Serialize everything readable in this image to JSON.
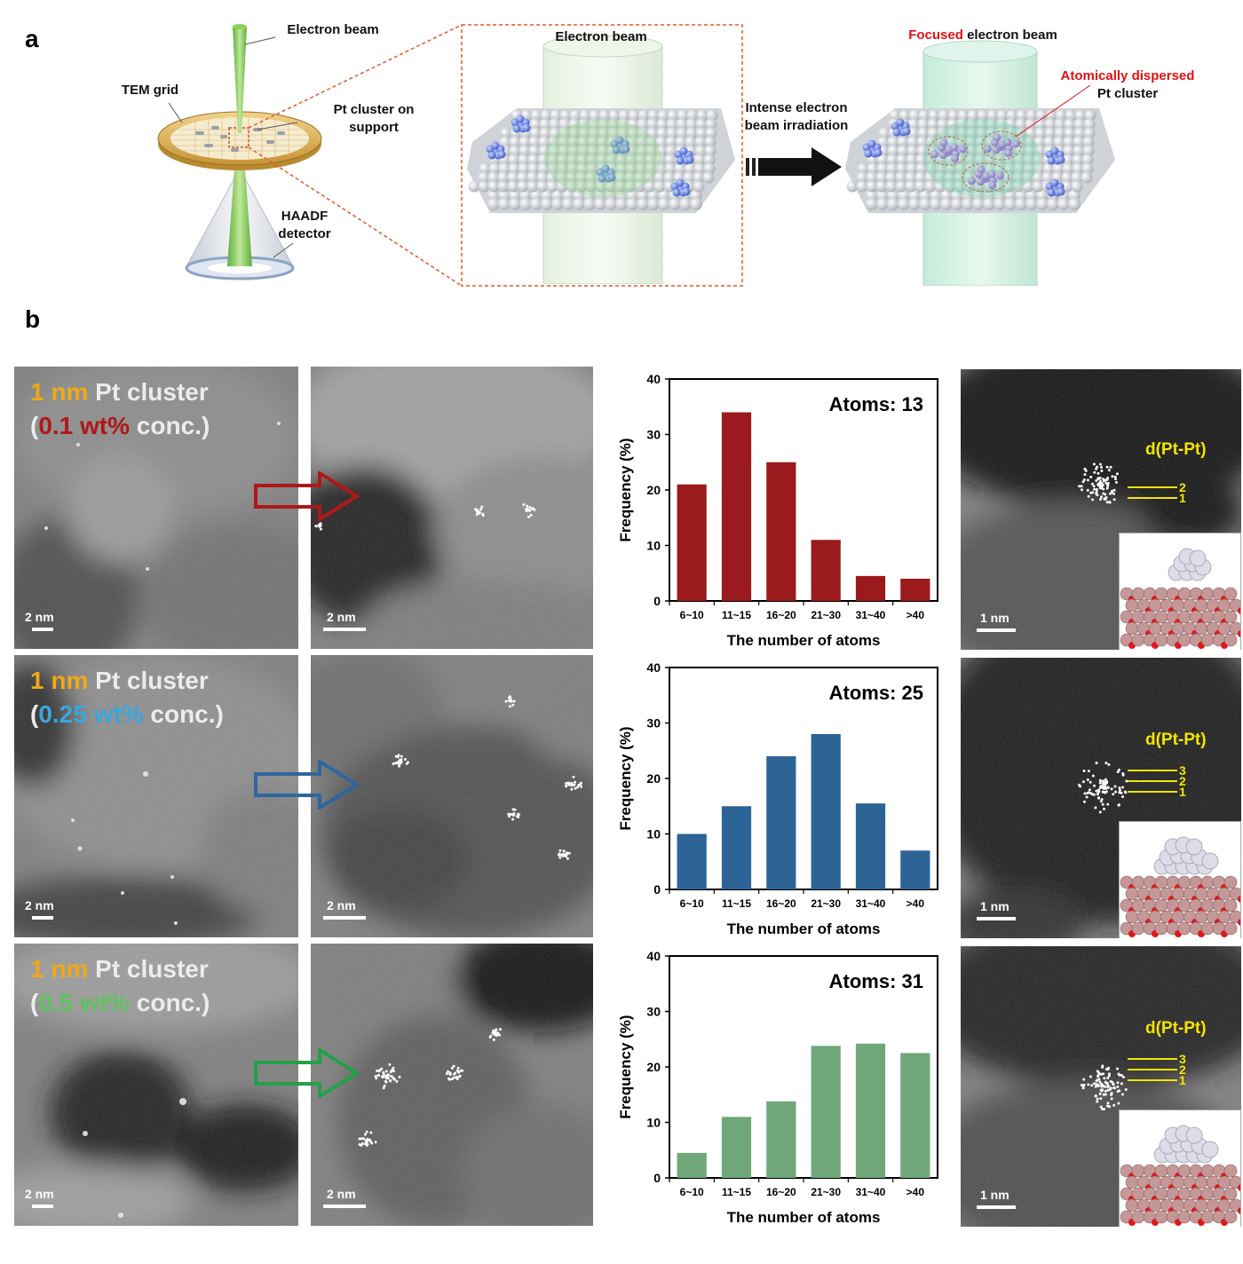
{
  "panel_a": {
    "letter": "a",
    "labels": {
      "electron_beam_left": "Electron beam",
      "tem_grid": "TEM grid",
      "pt_cluster_support": "Pt cluster on support",
      "haadf": "HAADF detector",
      "electron_beam_mid": "Electron beam",
      "intense": "Intense electron beam irradiation",
      "focused_word": "Focused",
      "focused_rest": " electron beam",
      "atom_disp_1": "Atomically dispersed",
      "atom_disp_2": "Pt cluster"
    },
    "colors": {
      "focused": "#e01010",
      "atomically": "#e01010",
      "beam": "#8cd05a",
      "grid": "#d8a84a",
      "dashed_box": "#e05a28"
    }
  },
  "panel_b": {
    "letter": "b",
    "rows": [
      {
        "title_prefix": "1 nm",
        "title_suffix": " Pt cluster",
        "conc_value": "0.1 wt%",
        "conc_rest": " conc.)",
        "conc_open": "(",
        "conc_color": "#b01818",
        "arrow_color": "#b01818",
        "scale_left": "2 nm",
        "scale_mid": "2 nm",
        "scale_right": "1 nm",
        "d_label": "d(Pt-Pt)",
        "layer_numbers": [
          "2",
          "1"
        ]
      },
      {
        "title_prefix": "1 nm",
        "title_suffix": " Pt cluster",
        "conc_value": "0.25 wt%",
        "conc_rest": " conc.)",
        "conc_open": "(",
        "conc_color": "#3aa6de",
        "arrow_color": "#2e66a0",
        "scale_left": "2 nm",
        "scale_mid": "2 nm",
        "scale_right": "1 nm",
        "d_label": "d(Pt-Pt)",
        "layer_numbers": [
          "3",
          "2",
          "1"
        ]
      },
      {
        "title_prefix": "1 nm",
        "title_suffix": " Pt cluster",
        "conc_value": "0.5 wt%",
        "conc_rest": " conc.)",
        "conc_open": "(",
        "conc_color": "#5ec25e",
        "arrow_color": "#22a04a",
        "scale_left": "2 nm",
        "scale_mid": "2 nm",
        "scale_right": "1 nm",
        "d_label": "d(Pt-Pt)",
        "layer_numbers": [
          "3",
          "2",
          "1"
        ]
      }
    ],
    "title_prefix_color": "#f0a818"
  },
  "chart_data": [
    {
      "type": "bar",
      "title": "Atoms: 13",
      "categories": [
        "6~10",
        "11~15",
        "16~20",
        "21~30",
        "31~40",
        ">40"
      ],
      "values": [
        21,
        34,
        25,
        11,
        4.5,
        4
      ],
      "xlabel": "The number of atoms",
      "ylabel": "Frequency (%)",
      "ylim": [
        0,
        40
      ],
      "yticks": [
        0,
        10,
        20,
        30,
        40
      ],
      "color": "#9a1a1e",
      "grid": false
    },
    {
      "type": "bar",
      "title": "Atoms: 25",
      "categories": [
        "6~10",
        "11~15",
        "16~20",
        "21~30",
        "31~40",
        ">40"
      ],
      "values": [
        10,
        15,
        24,
        28,
        15.5,
        7
      ],
      "xlabel": "The number of atoms",
      "ylabel": "Frequency (%)",
      "ylim": [
        0,
        40
      ],
      "yticks": [
        0,
        10,
        20,
        30,
        40
      ],
      "color": "#2c6496",
      "grid": false
    },
    {
      "type": "bar",
      "title": "Atoms: 31",
      "categories": [
        "6~10",
        "11~15",
        "16~20",
        "21~30",
        "31~40",
        ">40"
      ],
      "values": [
        4.5,
        11,
        13.8,
        23.8,
        24.2,
        22.5
      ],
      "xlabel": "The number of atoms",
      "ylabel": "Frequency (%)",
      "ylim": [
        0,
        40
      ],
      "yticks": [
        0,
        10,
        20,
        30,
        40
      ],
      "color": "#6fa77a",
      "grid": false
    }
  ]
}
